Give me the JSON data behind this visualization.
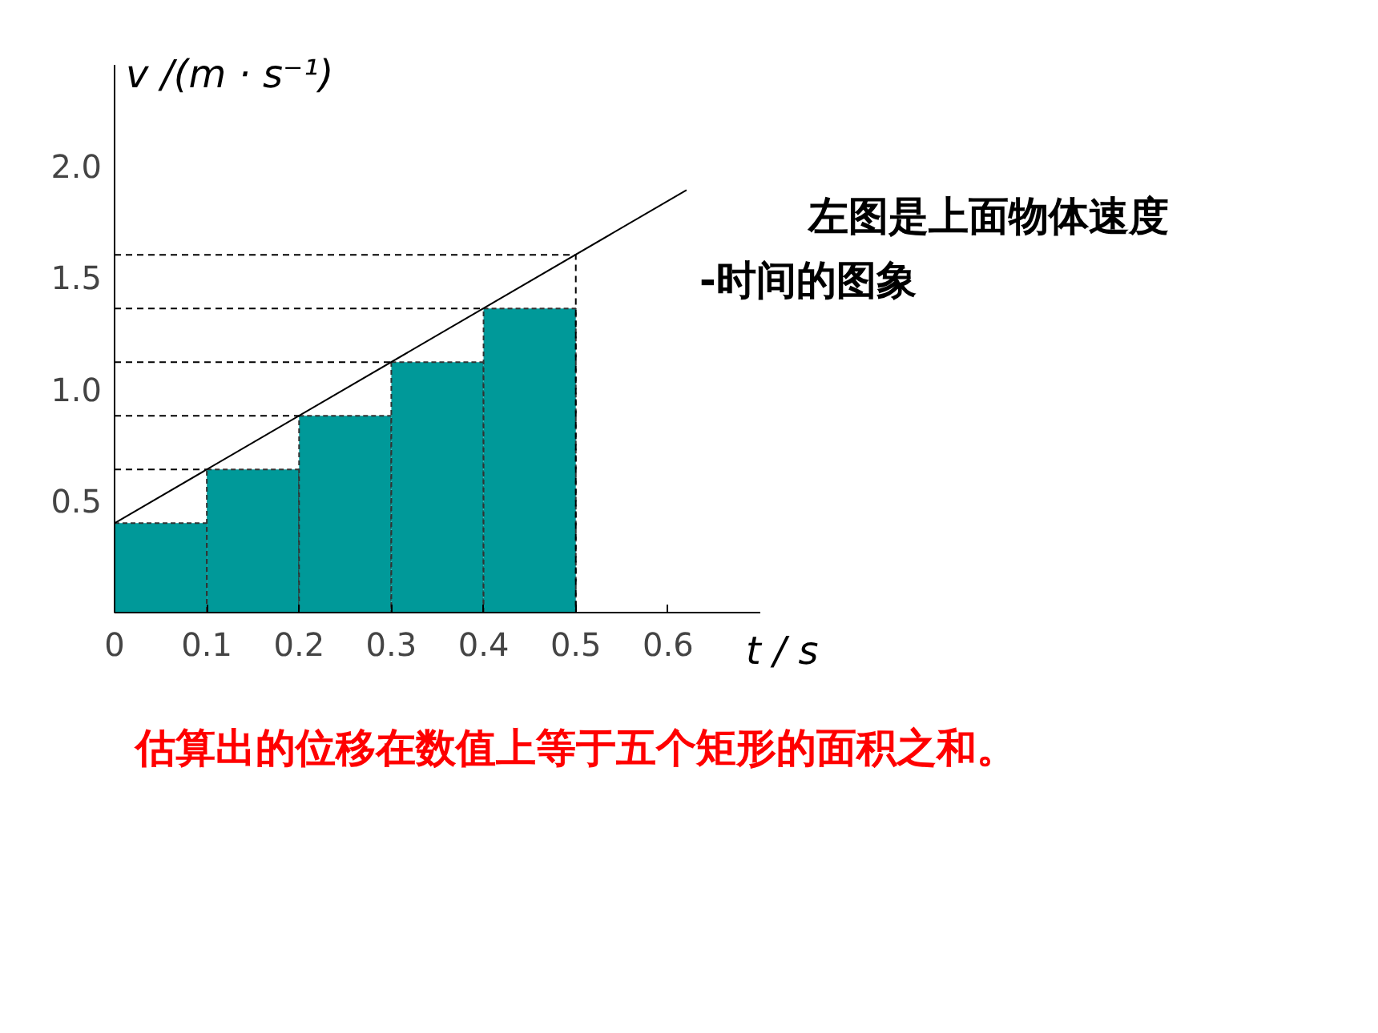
{
  "chart_data": {
    "type": "bar",
    "xlabel": "t / s",
    "ylabel": "v /(m · s⁻¹)",
    "annotations": [
      "左图是上面物体速度-时间的图象",
      "估算出的位移在数值上等于五个矩形的面积之和。"
    ],
    "xlim": [
      0,
      0.7
    ],
    "ylim": [
      0,
      2.45
    ],
    "xticks": [
      {
        "value": 0,
        "label": "0"
      },
      0.1,
      0.2,
      0.3,
      0.4,
      0.5,
      0.6
    ],
    "yticks": [
      0.5,
      {
        "value": 1,
        "label": "1.0"
      },
      1.5,
      {
        "value": 2,
        "label": "2.0"
      }
    ],
    "series": [
      {
        "color": "#009999",
        "x": [
          0.05,
          0.15,
          0.25,
          0.35,
          0.45
        ],
        "values": [
          0.4,
          0.64,
          0.88,
          1.12,
          1.36
        ]
      },
      {
        "type": "line",
        "color": "#000000",
        "line_style": "solid",
        "x": [
          0,
          0.62
        ],
        "values": [
          0.4,
          1.89
        ]
      },
      {
        "type": "line",
        "color": "#000000",
        "line_style": "dashed",
        "x": [
          0,
          0.1
        ],
        "values": [
          0.64,
          0.64
        ]
      },
      {
        "type": "line",
        "color": "#000000",
        "line_style": "dashed",
        "x": [
          0,
          0.2
        ],
        "values": [
          0.88,
          0.88
        ]
      },
      {
        "type": "line",
        "color": "#000000",
        "line_style": "dashed",
        "x": [
          0,
          0.3
        ],
        "values": [
          1.12,
          1.12
        ]
      },
      {
        "type": "line",
        "color": "#000000",
        "line_style": "dashed",
        "x": [
          0,
          0.4
        ],
        "values": [
          1.36,
          1.36
        ]
      },
      {
        "type": "line",
        "color": "#000000",
        "line_style": "dashed",
        "x": [
          0,
          0.5,
          0.5
        ],
        "values": [
          1.6,
          1.6,
          0
        ]
      }
    ]
  }
}
